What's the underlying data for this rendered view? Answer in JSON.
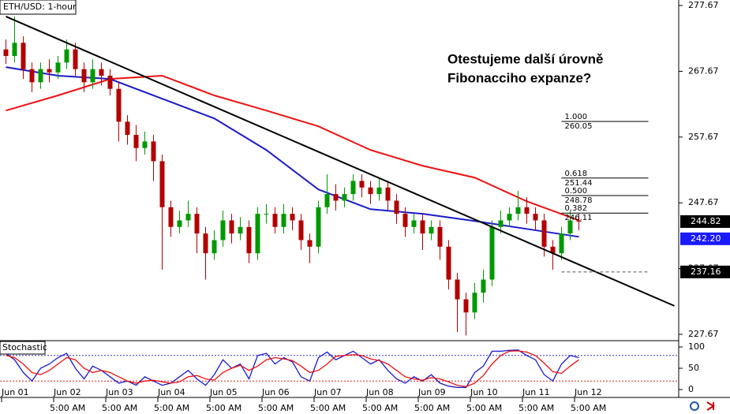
{
  "chart_data": [
    {
      "type": "candlestick",
      "title": "ETH/USD: 1-hour",
      "annotation": [
        "Otestujeme další úrovně",
        "Fibonacciho expanze?"
      ],
      "categories": [
        null,
        null,
        null,
        null,
        null,
        null,
        null,
        null,
        null,
        null,
        null,
        null,
        null,
        null,
        null,
        null,
        null,
        null,
        null,
        null,
        null,
        null,
        null,
        null,
        null,
        null,
        null,
        null,
        null,
        null,
        null,
        null,
        null,
        null,
        null,
        null,
        null,
        null,
        null,
        null,
        null,
        null,
        null,
        null,
        null,
        null,
        null,
        null,
        null,
        null,
        null,
        null,
        null,
        null,
        null,
        null,
        null,
        null,
        null,
        null,
        null,
        null,
        null,
        null,
        null,
        null,
        null
      ],
      "open": [
        271,
        270,
        272,
        268,
        266,
        268,
        267.5,
        269,
        271,
        268,
        266,
        268,
        267,
        265,
        260,
        258,
        256,
        257,
        254,
        247,
        244,
        245,
        246,
        243,
        240,
        242,
        245,
        243,
        244,
        240,
        246,
        246,
        244,
        246,
        245,
        242,
        241,
        247,
        249,
        248,
        249,
        251,
        250,
        249,
        250,
        248,
        246,
        244,
        245,
        243,
        244,
        241,
        236,
        233,
        231,
        234,
        236,
        244,
        245,
        246,
        247,
        246,
        245,
        241,
        240,
        243,
        245
      ],
      "high": [
        272.5,
        276,
        273,
        269,
        269,
        269.5,
        270,
        272.5,
        272,
        269,
        269.5,
        269,
        268,
        266,
        261,
        259.5,
        258.5,
        258,
        255,
        248,
        246.5,
        248,
        247,
        244,
        243.5,
        246.5,
        246,
        245.5,
        245,
        247,
        247.5,
        247,
        247.5,
        247,
        246,
        243,
        248,
        252,
        250.5,
        250,
        252,
        252,
        251,
        251.5,
        251,
        249,
        247,
        246,
        246,
        245,
        245,
        242,
        237,
        234,
        235.5,
        237.5,
        245,
        246.5,
        247,
        249.5,
        248.5,
        247,
        246,
        242,
        244,
        246.5,
        246
      ],
      "low": [
        268.8,
        269,
        266.5,
        264.5,
        265,
        266,
        266.5,
        268,
        267,
        264.5,
        265,
        265.5,
        264,
        257,
        256.5,
        254,
        255,
        251,
        237.5,
        242.5,
        243,
        244,
        240,
        236,
        239,
        241,
        241.5,
        242,
        238.5,
        239,
        244.5,
        243,
        243,
        243.5,
        240.5,
        238.5,
        240,
        246,
        246.5,
        247,
        248,
        248.5,
        247.5,
        248,
        246.5,
        244.5,
        242.5,
        243,
        240.5,
        242,
        239,
        234.5,
        228,
        227.5,
        230,
        232.5,
        235,
        243,
        244,
        245,
        244.5,
        243.5,
        239.5,
        237.5,
        239,
        242,
        243.5
      ],
      "close": [
        270,
        272,
        268,
        266,
        268,
        267.5,
        269,
        271,
        268,
        266,
        268,
        267,
        265,
        260,
        258,
        256,
        257,
        254,
        247,
        244,
        245,
        246,
        243,
        240,
        242,
        245,
        243,
        244,
        240,
        246,
        246,
        244,
        246,
        245,
        242,
        241,
        247,
        249,
        248,
        249,
        251,
        250,
        249,
        250,
        248,
        246,
        244,
        245,
        243,
        244,
        241,
        236,
        233,
        231,
        234,
        236,
        244,
        245,
        246,
        247,
        246,
        245,
        241,
        240,
        243,
        245,
        244.82
      ],
      "up_color": "#009900",
      "down_color": "#b30000",
      "xticks": [
        {
          "value": 0,
          "label": "Jun 01"
        },
        {
          "value": 6,
          "label": "Jun 02"
        },
        {
          "value": 12,
          "label": "Jun 03"
        },
        {
          "value": 18,
          "label": "Jun 04"
        },
        {
          "value": 24,
          "label": "Jun 05"
        },
        {
          "value": 30,
          "label": "Jun 06"
        },
        {
          "value": 36,
          "label": "Jun 07"
        },
        {
          "value": 42,
          "label": "Jun 08"
        },
        {
          "value": 48,
          "label": "Jun 09"
        },
        {
          "value": 54,
          "label": "Jun 10"
        },
        {
          "value": 60,
          "label": "Jun 11"
        },
        {
          "value": 66,
          "label": "Jun 12"
        }
      ],
      "time_labels": [
        "5:00 AM",
        "5:00 AM",
        "5:00 AM",
        "5:00 AM",
        "5:00 AM",
        "5:00 AM",
        "5:00 AM",
        "5:00 AM",
        "5:00 AM",
        "5:00 AM",
        "5:00 AM"
      ],
      "ylim": [
        226.71,
        278.51
      ],
      "yticks": [
        277.67,
        267.67,
        257.67,
        247.67,
        237.67,
        227.67
      ],
      "overlays": [
        {
          "color": "#ee1111",
          "x": [
            0,
            6,
            12,
            18,
            24,
            30,
            36,
            42,
            48,
            54,
            60,
            66
          ],
          "values": [
            261.7,
            264,
            266.5,
            267,
            264,
            261.7,
            259.3,
            255.7,
            253.3,
            251.5,
            247.9,
            245
          ]
        },
        {
          "color": "#1a1acc",
          "x": [
            0,
            6,
            12,
            18,
            24,
            30,
            36,
            42,
            48,
            54,
            60,
            66
          ],
          "values": [
            268.3,
            267,
            266.5,
            263.5,
            260.5,
            255.7,
            249.7,
            246.7,
            246,
            244.9,
            243.7,
            242.5
          ]
        }
      ],
      "trendline": {
        "x": [
          0,
          77
        ],
        "y": [
          276,
          232
        ]
      },
      "fib_x": [
        64,
        74
      ],
      "fib_levels": [
        {
          "ratio": {
            "value": 1,
            "label": "1.000"
          },
          "price": 260.05
        },
        {
          "ratio": 0.618,
          "price": 251.44
        },
        {
          "ratio": {
            "value": 0.5,
            "label": "0.500"
          },
          "price": 248.78
        },
        {
          "ratio": 0.382,
          "price": 246.11
        }
      ],
      "support_line": {
        "x": [
          64,
          74
        ],
        "price": 237.16
      },
      "price_labels": [
        {
          "value": 244.82,
          "color": "#000000"
        },
        {
          "value": 242.2,
          "label": "242.20",
          "color": "#1a1aff"
        },
        {
          "value": 237.16,
          "color": "#000000"
        }
      ]
    },
    {
      "type": "line",
      "title": "Stochastic",
      "ylim": [
        0,
        100
      ],
      "yticks": [
        0,
        50,
        100
      ],
      "levels": [
        {
          "value": 80,
          "color": "#3333cc"
        },
        {
          "value": 20,
          "color": "#dd2222"
        }
      ],
      "series": [
        {
          "color": "#1a1acc",
          "values": [
            85,
            70,
            40,
            20,
            50,
            60,
            75,
            85,
            50,
            25,
            55,
            45,
            30,
            15,
            20,
            10,
            30,
            20,
            10,
            15,
            30,
            45,
            25,
            10,
            35,
            70,
            50,
            60,
            25,
            80,
            85,
            60,
            75,
            65,
            30,
            20,
            75,
            88,
            70,
            80,
            90,
            75,
            60,
            70,
            45,
            25,
            15,
            30,
            20,
            35,
            15,
            8,
            5,
            5,
            40,
            55,
            90,
            90,
            92,
            93,
            80,
            70,
            35,
            20,
            60,
            80,
            75
          ]
        },
        {
          "color": "#ee1111",
          "values": [
            80,
            75,
            60,
            40,
            35,
            45,
            60,
            75,
            70,
            50,
            40,
            45,
            40,
            30,
            20,
            15,
            20,
            22,
            18,
            15,
            18,
            30,
            33,
            25,
            22,
            40,
            50,
            57,
            45,
            55,
            70,
            75,
            72,
            68,
            55,
            40,
            45,
            60,
            78,
            80,
            82,
            80,
            72,
            68,
            60,
            45,
            30,
            25,
            22,
            28,
            25,
            18,
            10,
            7,
            15,
            33,
            60,
            80,
            90,
            91,
            88,
            80,
            62,
            42,
            38,
            55,
            70
          ]
        }
      ]
    }
  ]
}
